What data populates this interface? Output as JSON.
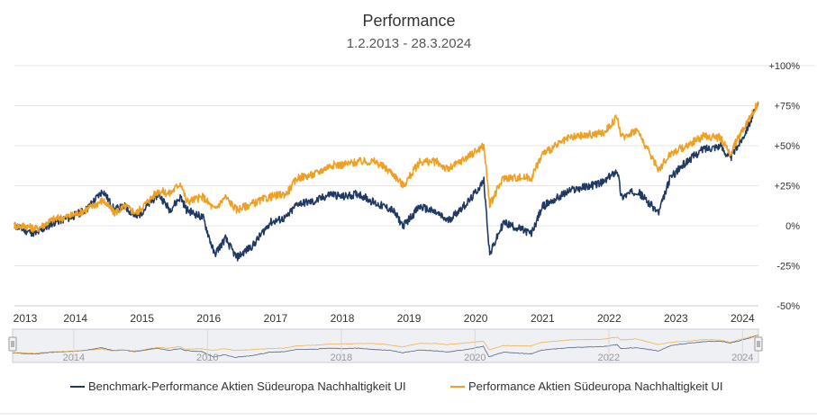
{
  "colors": {
    "benchmark": "#1f3864",
    "fund": "#f0a020",
    "grid": "#e6e6e6",
    "navigator_bg": "#eef0f4"
  },
  "chart_data": {
    "type": "line",
    "title": "Performance",
    "subtitle": "1.2.2013 - 28.3.2024",
    "x_range": [
      "2013-02-01",
      "2024-03-28"
    ],
    "ylim": [
      -50,
      100
    ],
    "y_ticks": [
      -50,
      -25,
      0,
      25,
      50,
      75,
      100
    ],
    "y_tick_labels": [
      "-50%",
      "-25%",
      "0%",
      "+25%",
      "+50%",
      "+75%",
      "+100%"
    ],
    "x_tick_labels": [
      "2013",
      "2014",
      "2015",
      "2016",
      "2017",
      "2018",
      "2019",
      "2020",
      "2021",
      "2022",
      "2023",
      "2024"
    ],
    "navigator_tick_labels": [
      "2014",
      "2016",
      "2018",
      "2020",
      "2022",
      "2024"
    ],
    "grid": true,
    "legend_position": "bottom",
    "series": [
      {
        "name": "Benchmark-Performance Aktien Südeuropa Nachhaltigkeit UI",
        "color": "#1f3864",
        "points": [
          [
            "2013-02-01",
            0
          ],
          [
            "2013-04-01",
            -3
          ],
          [
            "2013-06-01",
            -5
          ],
          [
            "2013-09-01",
            2
          ],
          [
            "2013-12-01",
            5
          ],
          [
            "2014-03-01",
            10
          ],
          [
            "2014-06-01",
            22
          ],
          [
            "2014-08-01",
            10
          ],
          [
            "2014-10-01",
            12
          ],
          [
            "2014-12-01",
            5
          ],
          [
            "2015-04-01",
            20
          ],
          [
            "2015-06-01",
            10
          ],
          [
            "2015-08-01",
            18
          ],
          [
            "2015-09-01",
            10
          ],
          [
            "2015-12-01",
            5
          ],
          [
            "2016-02-01",
            -18
          ],
          [
            "2016-04-01",
            -8
          ],
          [
            "2016-06-01",
            -20
          ],
          [
            "2016-09-01",
            -12
          ],
          [
            "2016-12-01",
            2
          ],
          [
            "2017-03-01",
            5
          ],
          [
            "2017-05-01",
            14
          ],
          [
            "2017-08-01",
            15
          ],
          [
            "2017-11-01",
            20
          ],
          [
            "2018-01-01",
            18
          ],
          [
            "2018-04-01",
            20
          ],
          [
            "2018-07-01",
            14
          ],
          [
            "2018-10-01",
            10
          ],
          [
            "2018-12-01",
            0
          ],
          [
            "2019-03-01",
            12
          ],
          [
            "2019-06-01",
            8
          ],
          [
            "2019-08-01",
            3
          ],
          [
            "2019-12-01",
            16
          ],
          [
            "2020-02-15",
            28
          ],
          [
            "2020-03-18",
            -18
          ],
          [
            "2020-06-01",
            2
          ],
          [
            "2020-09-01",
            -2
          ],
          [
            "2020-11-01",
            -5
          ],
          [
            "2021-01-01",
            12
          ],
          [
            "2021-06-01",
            22
          ],
          [
            "2021-12-01",
            27
          ],
          [
            "2022-02-15",
            35
          ],
          [
            "2022-03-08",
            18
          ],
          [
            "2022-06-01",
            22
          ],
          [
            "2022-09-29",
            8
          ],
          [
            "2022-12-01",
            30
          ],
          [
            "2023-03-01",
            40
          ],
          [
            "2023-06-01",
            48
          ],
          [
            "2023-09-01",
            50
          ],
          [
            "2023-10-25",
            42
          ],
          [
            "2024-01-01",
            55
          ],
          [
            "2024-03-28",
            76
          ]
        ]
      },
      {
        "name": "Performance Aktien Südeuropa Nachhaltigkeit UI",
        "color": "#f0a020",
        "points": [
          [
            "2013-02-01",
            0
          ],
          [
            "2013-04-01",
            0
          ],
          [
            "2013-06-01",
            -2
          ],
          [
            "2013-09-01",
            4
          ],
          [
            "2013-12-01",
            6
          ],
          [
            "2014-03-01",
            10
          ],
          [
            "2014-06-01",
            16
          ],
          [
            "2014-08-01",
            8
          ],
          [
            "2014-10-01",
            12
          ],
          [
            "2014-12-01",
            8
          ],
          [
            "2015-04-01",
            22
          ],
          [
            "2015-06-01",
            20
          ],
          [
            "2015-08-01",
            27
          ],
          [
            "2015-09-01",
            15
          ],
          [
            "2015-12-01",
            18
          ],
          [
            "2016-02-01",
            10
          ],
          [
            "2016-04-01",
            18
          ],
          [
            "2016-06-01",
            10
          ],
          [
            "2016-09-01",
            14
          ],
          [
            "2016-12-01",
            18
          ],
          [
            "2017-03-01",
            20
          ],
          [
            "2017-05-01",
            30
          ],
          [
            "2017-08-01",
            32
          ],
          [
            "2017-11-01",
            38
          ],
          [
            "2018-01-01",
            38
          ],
          [
            "2018-04-01",
            40
          ],
          [
            "2018-07-01",
            40
          ],
          [
            "2018-10-01",
            33
          ],
          [
            "2018-12-01",
            25
          ],
          [
            "2019-03-01",
            40
          ],
          [
            "2019-06-01",
            40
          ],
          [
            "2019-08-01",
            35
          ],
          [
            "2019-12-01",
            44
          ],
          [
            "2020-02-15",
            50
          ],
          [
            "2020-03-18",
            13
          ],
          [
            "2020-06-01",
            30
          ],
          [
            "2020-09-01",
            30
          ],
          [
            "2020-11-01",
            30
          ],
          [
            "2021-01-01",
            45
          ],
          [
            "2021-06-01",
            55
          ],
          [
            "2021-12-01",
            58
          ],
          [
            "2022-02-15",
            68
          ],
          [
            "2022-03-08",
            55
          ],
          [
            "2022-06-01",
            60
          ],
          [
            "2022-09-29",
            35
          ],
          [
            "2022-12-01",
            45
          ],
          [
            "2023-03-01",
            50
          ],
          [
            "2023-06-01",
            56
          ],
          [
            "2023-09-01",
            55
          ],
          [
            "2023-10-25",
            45
          ],
          [
            "2024-01-01",
            60
          ],
          [
            "2024-03-28",
            77
          ]
        ]
      }
    ]
  }
}
